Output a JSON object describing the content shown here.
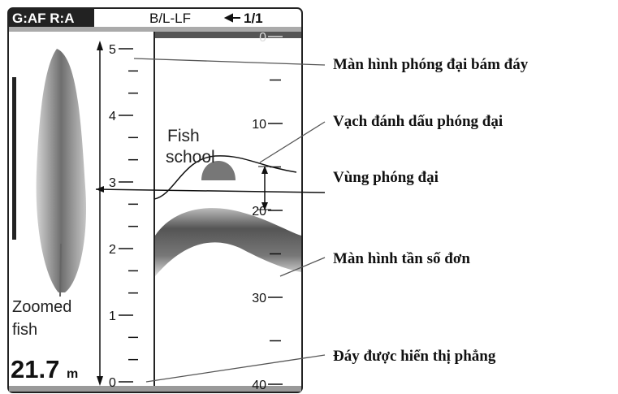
{
  "header": {
    "left": "G:AF R:A",
    "mode": "B/L-LF",
    "page": "1/1"
  },
  "left_scale": [
    5,
    4,
    3,
    2,
    1,
    0
  ],
  "right_scale": [
    0,
    10,
    20,
    30,
    40
  ],
  "labels": {
    "fish_school": "Fish school",
    "zoomed_fish": "Zoomed fish",
    "depth": "21.7",
    "depth_unit": "m"
  },
  "callouts": [
    "Màn hình phóng đại bám đáy",
    "Vạch đánh dấu phóng đại",
    "Vùng phóng đại",
    "Màn hình tần số đơn",
    "Đáy được hiển thị phẳng"
  ]
}
